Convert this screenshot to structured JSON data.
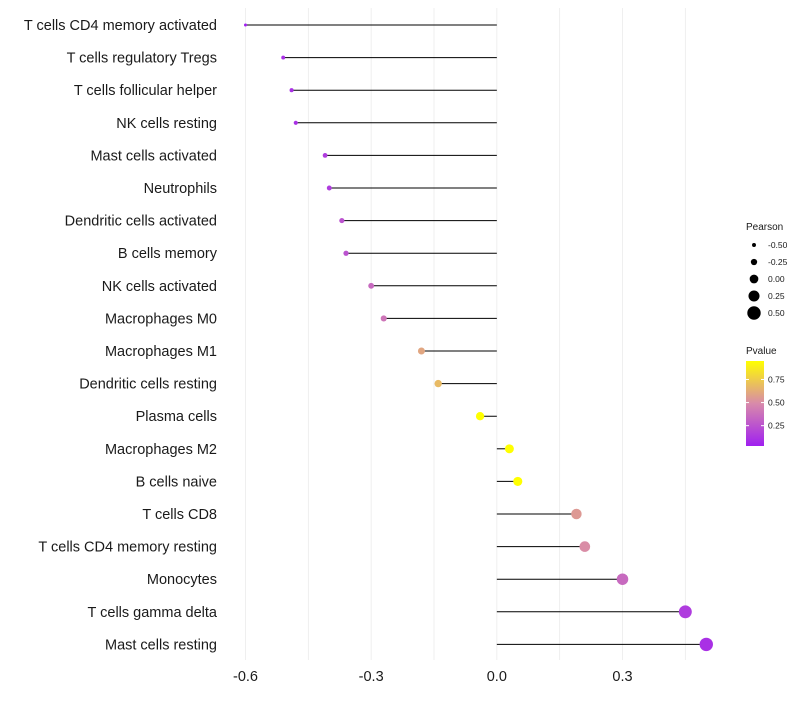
{
  "chart_data": {
    "type": "lollipop",
    "title": "",
    "xlabel": "",
    "ylabel": "",
    "xlim": [
      -0.6,
      0.5
    ],
    "x_ticks": [
      {
        "value": -0.6,
        "label": "-0.6"
      },
      {
        "value": -0.3,
        "label": "-0.3"
      },
      {
        "value": 0.0,
        "label": "0.0"
      },
      {
        "value": 0.3,
        "label": "0.3"
      }
    ],
    "categories": [
      "T cells CD4 memory activated",
      "T cells regulatory  Tregs",
      "T cells follicular helper",
      "NK cells resting",
      "Mast cells activated",
      "Neutrophils",
      "Dendritic cells activated",
      "B cells memory",
      "NK cells activated",
      "Macrophages M0",
      "Macrophages M1",
      "Dendritic cells resting",
      "Plasma cells",
      "Macrophages M2",
      "B cells naive",
      "T cells CD8",
      "T cells CD4 memory resting",
      "Monocytes",
      "T cells gamma delta",
      "Mast cells resting"
    ],
    "pearson": [
      -0.6,
      -0.51,
      -0.49,
      -0.48,
      -0.41,
      -0.4,
      -0.37,
      -0.36,
      -0.3,
      -0.27,
      -0.18,
      -0.14,
      -0.04,
      0.03,
      0.05,
      0.19,
      0.21,
      0.3,
      0.45,
      0.5
    ],
    "pvalue": [
      0.03,
      0.1,
      0.1,
      0.1,
      0.15,
      0.15,
      0.25,
      0.25,
      0.35,
      0.4,
      0.6,
      0.68,
      0.95,
      0.95,
      0.95,
      0.55,
      0.5,
      0.35,
      0.15,
      0.1
    ],
    "legend": {
      "size_title": "Pearson",
      "size_values": [
        -0.5,
        -0.25,
        0.0,
        0.25,
        0.5
      ],
      "size_labels": [
        "-0.50",
        "-0.25",
        "0.00",
        "0.25",
        "0.50"
      ],
      "color_title": "Pvalue",
      "color_ticks": [
        {
          "value": 0.75,
          "label": "0.75"
        },
        {
          "value": 0.5,
          "label": "0.50"
        },
        {
          "value": 0.25,
          "label": "0.25"
        }
      ],
      "color_range": [
        0.03,
        0.95
      ],
      "placement": "right"
    },
    "colors": {
      "low": "#a020f0",
      "mid": "#d88aaa",
      "high": "#ffff00",
      "stem": "#000000",
      "grid": "#ebebeb"
    },
    "grid": true
  }
}
